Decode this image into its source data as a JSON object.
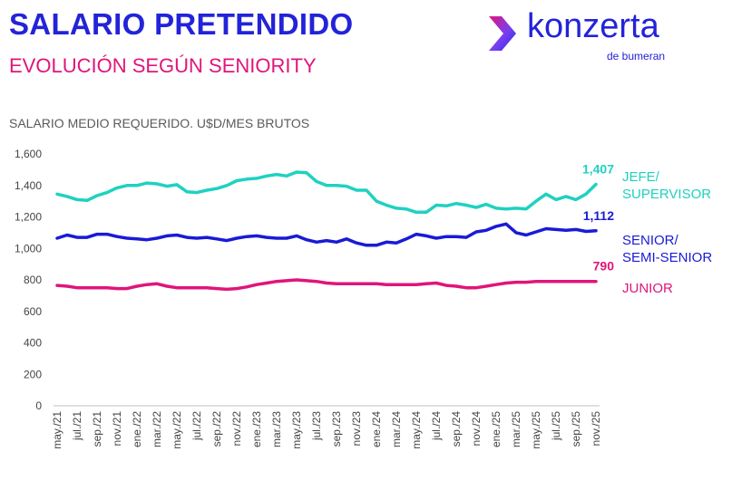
{
  "header": {
    "title": "SALARIO PRETENDIDO",
    "subtitle": "EVOLUCIÓN SEGÚN SENIORITY"
  },
  "logo": {
    "word": "konzerta",
    "sub": "de bumeran"
  },
  "chart_caption": "SALARIO MEDIO REQUERIDO. U$D/MES BRUTOS",
  "colors": {
    "title": "#2323d9",
    "subtitle": "#e0157a",
    "jefe": "#1fd1c1",
    "senior": "#1a1ad6",
    "junior": "#e0157a"
  },
  "chart_data": {
    "type": "line",
    "ylim": [
      0,
      1600
    ],
    "yticks": [
      "0",
      "200",
      "400",
      "600",
      "800",
      "1,000",
      "1,200",
      "1,400",
      "1,600"
    ],
    "x": [
      "may./21",
      "jun./21",
      "jul./21",
      "ago./21",
      "sep./21",
      "oct./21",
      "nov./21",
      "dic./21",
      "ene./22",
      "feb./22",
      "mar./22",
      "abr./22",
      "may./22",
      "jun./22",
      "jul./22",
      "ago./22",
      "sep./22",
      "oct./22",
      "nov./22",
      "dic./22",
      "ene./23",
      "feb./23",
      "mar./23",
      "abr./23",
      "may./23",
      "jun./23",
      "jul./23",
      "ago./23",
      "sep./23",
      "oct./23",
      "nov./23",
      "dic./23",
      "ene./24",
      "feb./24",
      "mar./24",
      "abr./24",
      "may./24",
      "jun./24",
      "jul./24",
      "ago./24",
      "sep./24",
      "oct./24",
      "nov./24",
      "dic./24",
      "ene./25",
      "feb./25",
      "mar./25",
      "abr./25",
      "may./25",
      "jun./25",
      "jul./25",
      "ago./25",
      "sep./25",
      "oct./25",
      "nov./25"
    ],
    "xtick_labels": [
      "may./21",
      "jul./21",
      "sep./21",
      "nov./21",
      "ene./22",
      "mar./22",
      "may./22",
      "jul./22",
      "sep./22",
      "nov./22",
      "ene./23",
      "mar./23",
      "may./23",
      "jul./23",
      "sep./23",
      "nov./23",
      "ene./24",
      "mar./24",
      "may./24",
      "jul./24",
      "sep./24",
      "nov./24",
      "ene./25",
      "mar./25",
      "may./25",
      "jul./25",
      "sep./25",
      "nov./25"
    ],
    "series": [
      {
        "name": "JEFE/ SUPERVISOR",
        "label_lines": [
          "JEFE/",
          "SUPERVISOR"
        ],
        "end_label": "1,407",
        "color": "#1fd1c1",
        "values": [
          1345,
          1330,
          1310,
          1305,
          1335,
          1355,
          1385,
          1400,
          1400,
          1415,
          1410,
          1395,
          1405,
          1360,
          1355,
          1370,
          1380,
          1400,
          1430,
          1440,
          1445,
          1460,
          1470,
          1460,
          1485,
          1480,
          1425,
          1400,
          1400,
          1395,
          1370,
          1370,
          1300,
          1275,
          1255,
          1250,
          1230,
          1230,
          1275,
          1270,
          1285,
          1275,
          1260,
          1280,
          1255,
          1250,
          1255,
          1250,
          1300,
          1345,
          1310,
          1330,
          1310,
          1345,
          1407
        ]
      },
      {
        "name": "SENIOR/ SEMI-SENIOR",
        "label_lines": [
          "SENIOR/",
          "SEMI-SENIOR"
        ],
        "end_label": "1,112",
        "color": "#1a1ad6",
        "values": [
          1065,
          1085,
          1070,
          1070,
          1090,
          1090,
          1075,
          1065,
          1060,
          1055,
          1065,
          1080,
          1085,
          1070,
          1065,
          1070,
          1060,
          1050,
          1065,
          1075,
          1080,
          1070,
          1065,
          1065,
          1080,
          1055,
          1040,
          1050,
          1040,
          1060,
          1035,
          1020,
          1020,
          1040,
          1035,
          1060,
          1090,
          1080,
          1065,
          1075,
          1075,
          1070,
          1105,
          1115,
          1140,
          1155,
          1100,
          1085,
          1105,
          1125,
          1120,
          1115,
          1120,
          1108,
          1112
        ]
      },
      {
        "name": "JUNIOR",
        "label_lines": [
          "JUNIOR"
        ],
        "end_label": "790",
        "color": "#e0157a",
        "values": [
          765,
          760,
          750,
          750,
          750,
          750,
          745,
          745,
          760,
          770,
          775,
          760,
          750,
          750,
          750,
          750,
          745,
          740,
          745,
          755,
          770,
          780,
          790,
          795,
          800,
          795,
          790,
          780,
          775,
          775,
          775,
          775,
          775,
          770,
          770,
          770,
          770,
          775,
          780,
          765,
          760,
          750,
          750,
          760,
          770,
          780,
          785,
          785,
          790,
          790,
          790,
          790,
          790,
          790,
          790
        ]
      }
    ]
  }
}
